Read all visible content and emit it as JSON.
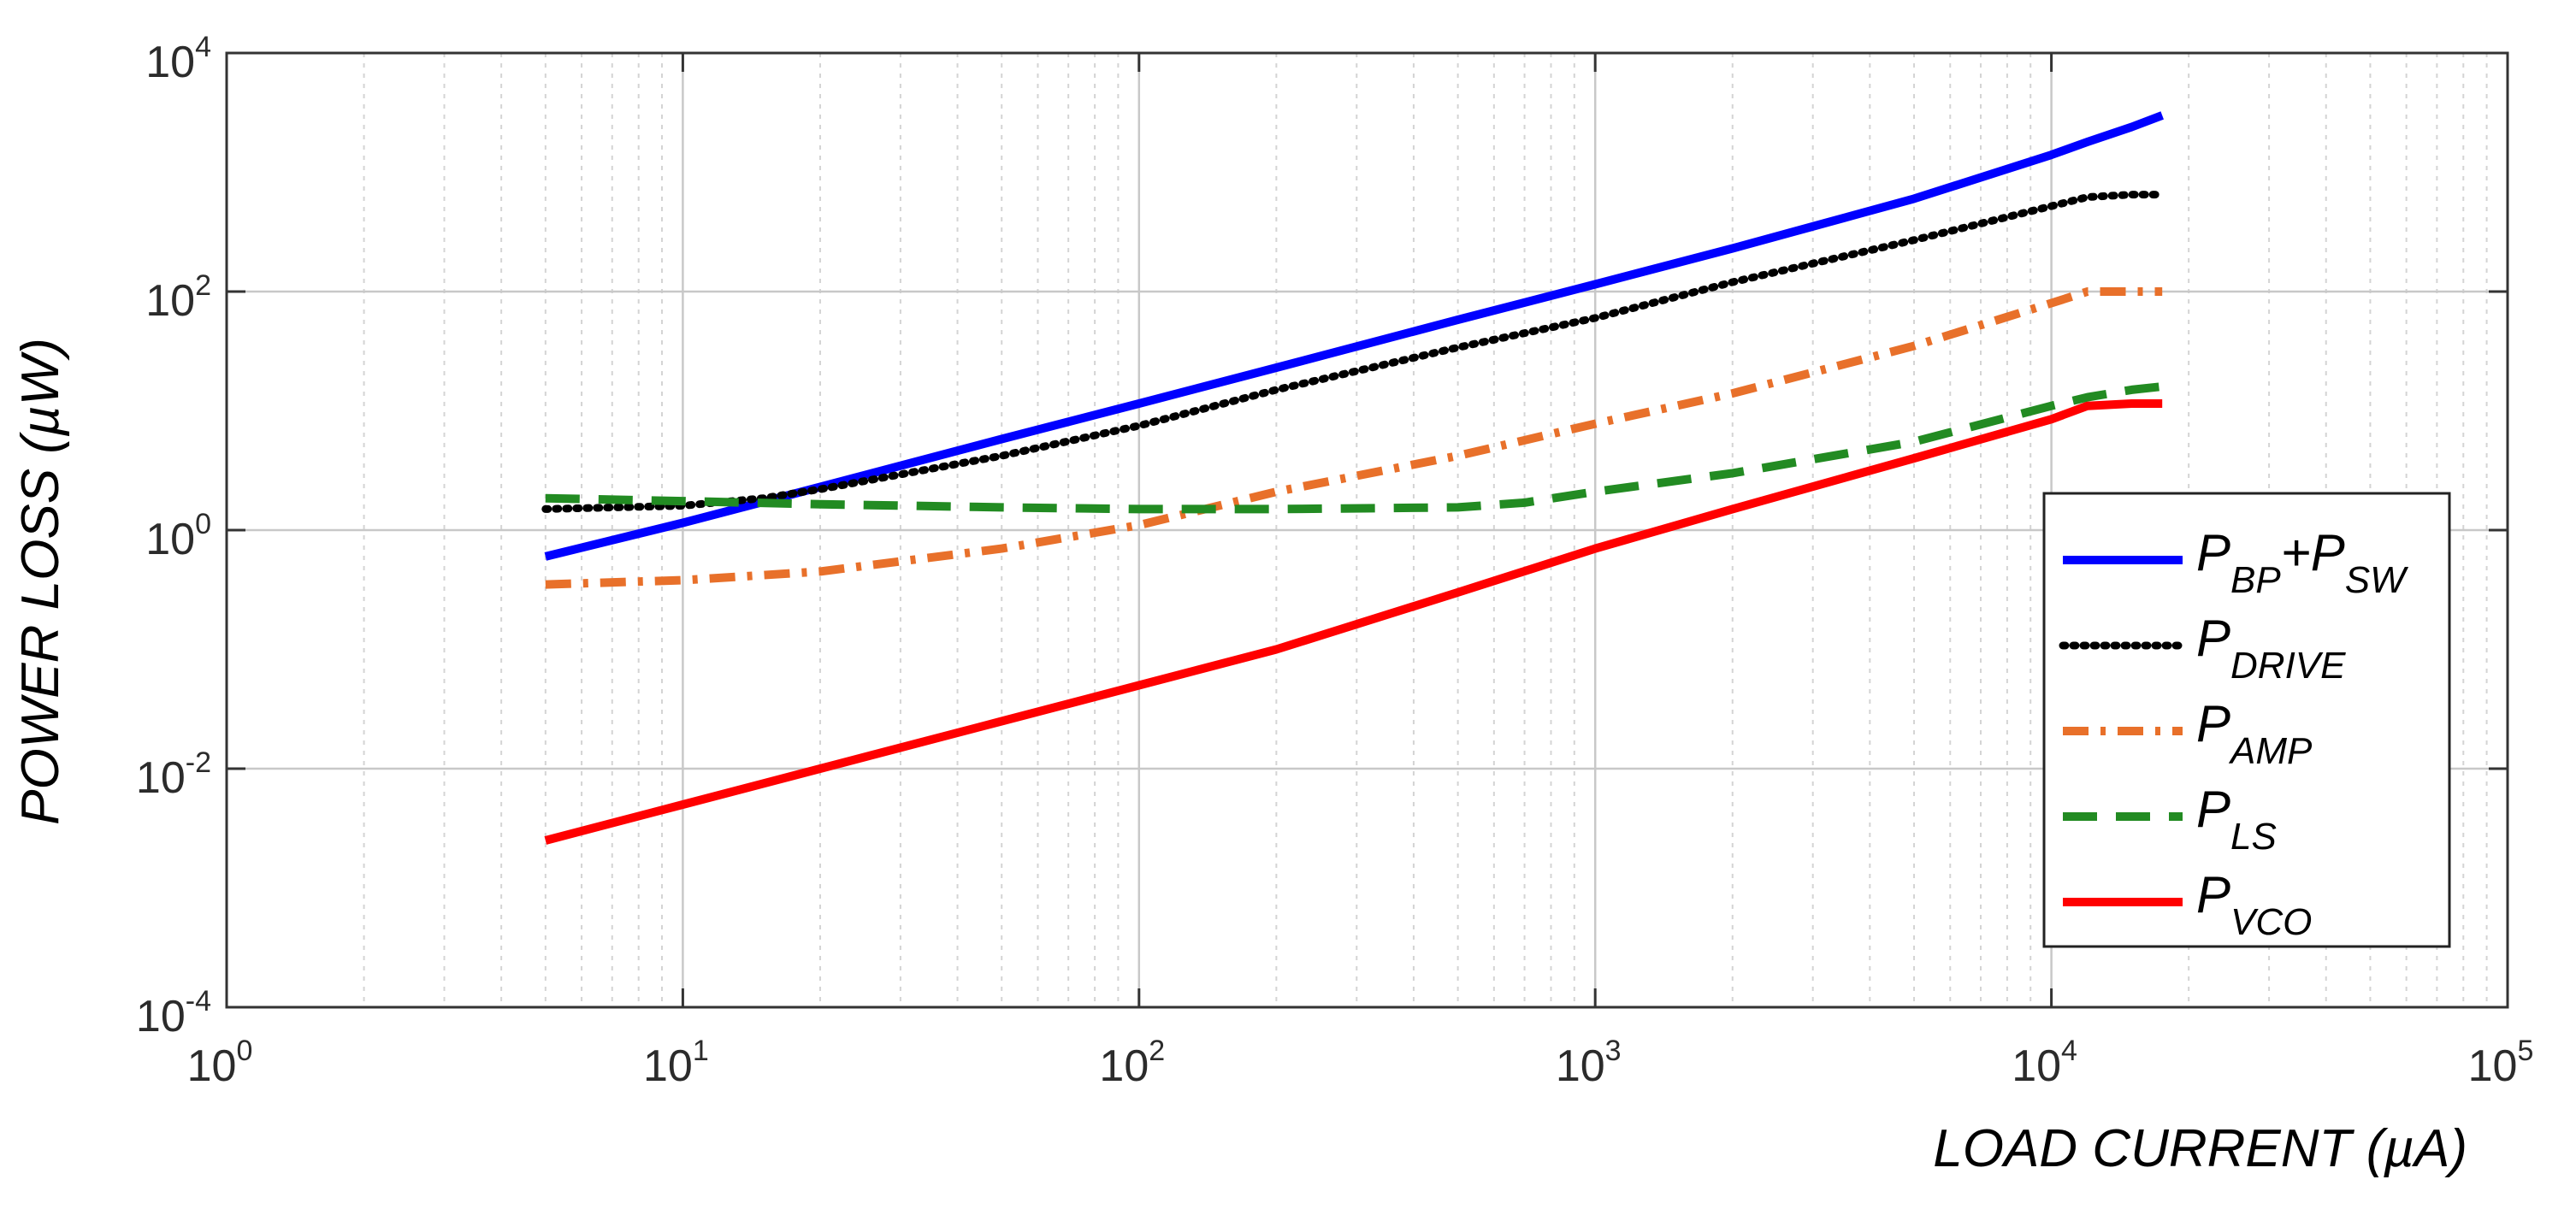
{
  "chart_data": {
    "type": "line",
    "xscale": "log",
    "yscale": "log",
    "xlim": [
      1,
      100000
    ],
    "ylim": [
      0.0001,
      10000
    ],
    "grid": true,
    "minor_grid": true,
    "legend_position": "lower-right",
    "xlabel": "LOAD CURRENT (µA)",
    "ylabel": "POWER LOSS (µW)",
    "x_ticks": [
      {
        "value": 1,
        "base": "10",
        "exp": "0"
      },
      {
        "value": 10,
        "base": "10",
        "exp": "1"
      },
      {
        "value": 100,
        "base": "10",
        "exp": "2"
      },
      {
        "value": 1000,
        "base": "10",
        "exp": "3"
      },
      {
        "value": 10000,
        "base": "10",
        "exp": "4"
      },
      {
        "value": 100000,
        "base": "10",
        "exp": "5"
      }
    ],
    "y_ticks": [
      {
        "value": 0.0001,
        "base": "10",
        "exp": "-4"
      },
      {
        "value": 0.01,
        "base": "10",
        "exp": "-2"
      },
      {
        "value": 1,
        "base": "10",
        "exp": "0"
      },
      {
        "value": 100,
        "base": "10",
        "exp": "2"
      },
      {
        "value": 10000,
        "base": "10",
        "exp": "4"
      }
    ],
    "series": [
      {
        "key": "pbp-psw",
        "name_main": "P",
        "name_sub": "BP",
        "name_mid": "+P",
        "name_sub2": "SW",
        "color": "#0000ff",
        "style": "solid",
        "x": [
          5,
          10,
          20,
          50,
          100,
          200,
          500,
          1000,
          2000,
          5000,
          10000,
          12000,
          15000,
          17500
        ],
        "y": [
          0.6,
          1.15,
          2.3,
          5.8,
          11.5,
          23,
          58,
          115,
          230,
          600,
          1400,
          1800,
          2400,
          3000
        ]
      },
      {
        "key": "pdrive",
        "name_main": "P",
        "name_sub": "DRIVE",
        "color": "#000000",
        "style": "dotted",
        "x": [
          5,
          10,
          15,
          20,
          50,
          100,
          200,
          500,
          1000,
          2000,
          5000,
          10000,
          12000,
          15000,
          17500
        ],
        "y": [
          1.5,
          1.6,
          1.85,
          2.2,
          4.2,
          7.5,
          15,
          34,
          60,
          120,
          270,
          520,
          620,
          650,
          650
        ]
      },
      {
        "key": "pamp",
        "name_main": "P",
        "name_sub": "AMP",
        "color": "#e8702a",
        "style": "dashdot",
        "x": [
          5,
          10,
          20,
          50,
          100,
          200,
          500,
          1000,
          2000,
          5000,
          10000,
          12000,
          15000,
          17500
        ],
        "y": [
          0.35,
          0.38,
          0.45,
          0.7,
          1.1,
          2.1,
          4.2,
          7.8,
          14,
          35,
          80,
          100,
          100,
          100
        ]
      },
      {
        "key": "pls",
        "name_main": "P",
        "name_sub": "LS",
        "color": "#228b22",
        "style": "dashed",
        "x": [
          5,
          10,
          20,
          50,
          100,
          200,
          500,
          700,
          1000,
          2000,
          5000,
          10000,
          12000,
          15000,
          17500
        ],
        "y": [
          1.85,
          1.75,
          1.65,
          1.55,
          1.5,
          1.5,
          1.55,
          1.7,
          2.1,
          3.0,
          5.5,
          11,
          13,
          15,
          16
        ]
      },
      {
        "key": "pvco",
        "name_main": "P",
        "name_sub": "VCO",
        "color": "#ff0000",
        "style": "solid",
        "x": [
          5,
          10,
          20,
          50,
          100,
          200,
          500,
          1000,
          2000,
          5000,
          10000,
          12000,
          15000,
          17500
        ],
        "y": [
          0.0025,
          0.005,
          0.01,
          0.025,
          0.05,
          0.1,
          0.3,
          0.7,
          1.5,
          4.0,
          8.5,
          11,
          11.5,
          11.5
        ]
      }
    ]
  }
}
